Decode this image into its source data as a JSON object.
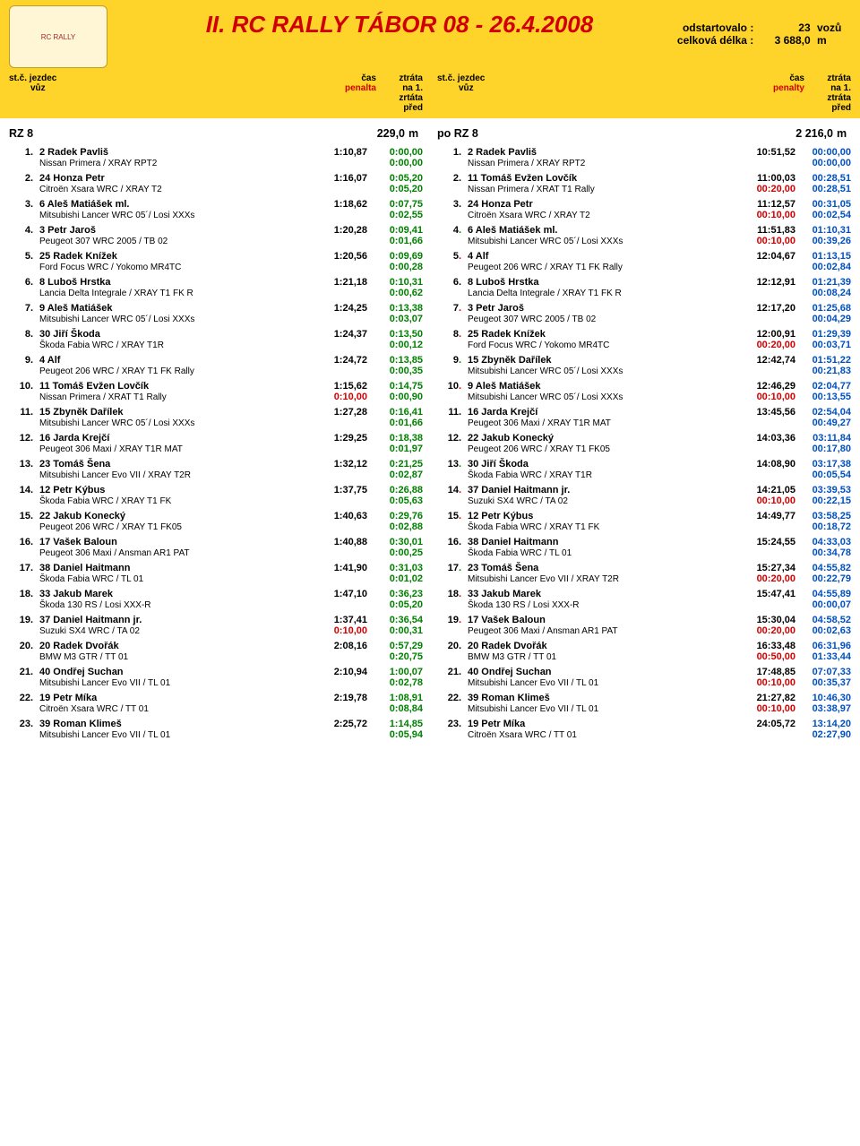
{
  "title": "II. RC RALLY TÁBOR 08 - 26.4.2008",
  "meta": {
    "started_label": "odstartovalo  :",
    "started_val": "23",
    "started_unit": "vozů",
    "length_label": "celková délka :",
    "length_val": "3 688,0",
    "length_unit": "m"
  },
  "head": {
    "stc": "st.č.",
    "jezdec": "jezdec",
    "cas": "čas",
    "ztrata": "ztráta",
    "na1": "na 1.",
    "vuz": "vůz",
    "penalta": "penalta",
    "penalty": "penalty",
    "zrtata": "zrtáta",
    "ztrata2": "ztráta",
    "pred": "před"
  },
  "left": {
    "heading": "RZ 8",
    "dist": "229,0",
    "unit": "m",
    "rows": [
      {
        "pos": "1",
        "dotc": "black",
        "drv": "2 Radek Pavliš",
        "car": "Nissan Primera / XRAY RPT2",
        "t1": "1:10,87",
        "t2": "0:00,00",
        "pen": "",
        "sub": "0:00,00",
        "t1c": "black",
        "t2c": "green",
        "subc": "green"
      },
      {
        "pos": "2",
        "dotc": "black",
        "drv": "24 Honza Petr",
        "car": "Citroën Xsara WRC / XRAY T2",
        "t1": "1:16,07",
        "t2": "0:05,20",
        "pen": "",
        "sub": "0:05,20",
        "t1c": "black",
        "t2c": "green",
        "subc": "green"
      },
      {
        "pos": "3",
        "dotc": "black",
        "drv": "6 Aleš Matiášek ml.",
        "car": "Mitsubishi Lancer WRC 05´/ Losi XXXs",
        "t1": "1:18,62",
        "t2": "0:07,75",
        "pen": "",
        "sub": "0:02,55",
        "t1c": "black",
        "t2c": "green",
        "subc": "green"
      },
      {
        "pos": "4",
        "dotc": "black",
        "drv": "3 Petr Jaroš",
        "car": "Peugeot 307 WRC 2005 / TB 02",
        "t1": "1:20,28",
        "t2": "0:09,41",
        "pen": "",
        "sub": "0:01,66",
        "t1c": "black",
        "t2c": "green",
        "subc": "green"
      },
      {
        "pos": "5",
        "dotc": "black",
        "drv": "25 Radek Knížek",
        "car": "Ford Focus WRC / Yokomo MR4TC",
        "t1": "1:20,56",
        "t2": "0:09,69",
        "pen": "",
        "sub": "0:00,28",
        "t1c": "black",
        "t2c": "green",
        "subc": "green"
      },
      {
        "pos": "6",
        "dotc": "black",
        "drv": "8 Luboš Hrstka",
        "car": "Lancia Delta Integrale / XRAY T1 FK R",
        "t1": "1:21,18",
        "t2": "0:10,31",
        "pen": "",
        "sub": "0:00,62",
        "t1c": "black",
        "t2c": "green",
        "subc": "green"
      },
      {
        "pos": "7",
        "dotc": "black",
        "drv": "9 Aleš Matiášek",
        "car": "Mitsubishi Lancer WRC 05´/ Losi XXXs",
        "t1": "1:24,25",
        "t2": "0:13,38",
        "pen": "",
        "sub": "0:03,07",
        "t1c": "black",
        "t2c": "green",
        "subc": "green"
      },
      {
        "pos": "8",
        "dotc": "black",
        "drv": "30 Jiří Škoda",
        "car": "Škoda Fabia WRC / XRAY T1R",
        "t1": "1:24,37",
        "t2": "0:13,50",
        "pen": "",
        "sub": "0:00,12",
        "t1c": "black",
        "t2c": "green",
        "subc": "green"
      },
      {
        "pos": "9",
        "dotc": "black",
        "drv": "4 Alf",
        "car": "Peugeot 206 WRC / XRAY T1 FK Rally",
        "t1": "1:24,72",
        "t2": "0:13,85",
        "pen": "",
        "sub": "0:00,35",
        "t1c": "black",
        "t2c": "green",
        "subc": "green"
      },
      {
        "pos": "10",
        "dotc": "black",
        "drv": "11 Tomáš Evžen Lovčík",
        "car": "Nissan Primera / XRAT T1 Rally",
        "t1": "1:15,62",
        "t2": "0:14,75",
        "pen": "0:10,00",
        "sub": "0:00,90",
        "t1c": "black",
        "t2c": "green",
        "subc": "green"
      },
      {
        "pos": "11",
        "dotc": "black",
        "drv": "15 Zbyněk Dařílek",
        "car": "Mitsubishi Lancer WRC 05´/ Losi XXXs",
        "t1": "1:27,28",
        "t2": "0:16,41",
        "pen": "",
        "sub": "0:01,66",
        "t1c": "black",
        "t2c": "green",
        "subc": "green"
      },
      {
        "pos": "12",
        "dotc": "black",
        "drv": "16 Jarda Krejčí",
        "car": "Peugeot 306 Maxi / XRAY T1R MAT",
        "t1": "1:29,25",
        "t2": "0:18,38",
        "pen": "",
        "sub": "0:01,97",
        "t1c": "black",
        "t2c": "green",
        "subc": "green"
      },
      {
        "pos": "13",
        "dotc": "black",
        "drv": "23 Tomáš Šena",
        "car": "Mitsubishi Lancer Evo VII / XRAY T2R",
        "t1": "1:32,12",
        "t2": "0:21,25",
        "pen": "",
        "sub": "0:02,87",
        "t1c": "black",
        "t2c": "green",
        "subc": "green"
      },
      {
        "pos": "14",
        "dotc": "black",
        "drv": "12 Petr Kýbus",
        "car": "Škoda Fabia WRC / XRAY T1 FK",
        "t1": "1:37,75",
        "t2": "0:26,88",
        "pen": "",
        "sub": "0:05,63",
        "t1c": "black",
        "t2c": "green",
        "subc": "green"
      },
      {
        "pos": "15",
        "dotc": "black",
        "drv": "22 Jakub Konecký",
        "car": "Peugeot 206 WRC / XRAY T1 FK05",
        "t1": "1:40,63",
        "t2": "0:29,76",
        "pen": "",
        "sub": "0:02,88",
        "t1c": "black",
        "t2c": "green",
        "subc": "green"
      },
      {
        "pos": "16",
        "dotc": "black",
        "drv": "17 Vašek Baloun",
        "car": "Peugeot 306 Maxi / Ansman AR1 PAT",
        "t1": "1:40,88",
        "t2": "0:30,01",
        "pen": "",
        "sub": "0:00,25",
        "t1c": "black",
        "t2c": "green",
        "subc": "green"
      },
      {
        "pos": "17",
        "dotc": "black",
        "drv": "38 Daniel Haitmann",
        "car": "Škoda Fabia WRC / TL 01",
        "t1": "1:41,90",
        "t2": "0:31,03",
        "pen": "",
        "sub": "0:01,02",
        "t1c": "black",
        "t2c": "green",
        "subc": "green"
      },
      {
        "pos": "18",
        "dotc": "black",
        "drv": "33 Jakub Marek",
        "car": "Škoda 130 RS / Losi XXX-R",
        "t1": "1:47,10",
        "t2": "0:36,23",
        "pen": "",
        "sub": "0:05,20",
        "t1c": "black",
        "t2c": "green",
        "subc": "green"
      },
      {
        "pos": "19",
        "dotc": "black",
        "drv": "37 Daniel Haitmann jr.",
        "car": "Suzuki SX4 WRC / TA 02",
        "t1": "1:37,41",
        "t2": "0:36,54",
        "pen": "0:10,00",
        "sub": "0:00,31",
        "t1c": "black",
        "t2c": "green",
        "subc": "green"
      },
      {
        "pos": "20",
        "dotc": "black",
        "drv": "20 Radek Dvořák",
        "car": "BMW M3 GTR / TT 01",
        "t1": "2:08,16",
        "t2": "0:57,29",
        "pen": "",
        "sub": "0:20,75",
        "t1c": "black",
        "t2c": "green",
        "subc": "green"
      },
      {
        "pos": "21",
        "dotc": "black",
        "drv": "40 Ondřej Suchan",
        "car": "Mitsubishi Lancer Evo VII / TL 01",
        "t1": "2:10,94",
        "t2": "1:00,07",
        "pen": "",
        "sub": "0:02,78",
        "t1c": "black",
        "t2c": "green",
        "subc": "green"
      },
      {
        "pos": "22",
        "dotc": "black",
        "drv": "19 Petr Míka",
        "car": "Citroën Xsara WRC / TT 01",
        "t1": "2:19,78",
        "t2": "1:08,91",
        "pen": "",
        "sub": "0:08,84",
        "t1c": "black",
        "t2c": "green",
        "subc": "green"
      },
      {
        "pos": "23",
        "dotc": "black",
        "drv": "39 Roman Klimeš",
        "car": "Mitsubishi Lancer Evo VII / TL 01",
        "t1": "2:25,72",
        "t2": "1:14,85",
        "pen": "",
        "sub": "0:05,94",
        "t1c": "black",
        "t2c": "green",
        "subc": "green"
      }
    ]
  },
  "right": {
    "heading": "po RZ 8",
    "dist": "2 216,0",
    "unit": "m",
    "rows": [
      {
        "pos": "1",
        "dotc": "black",
        "drv": "2 Radek Pavliš",
        "car": "Nissan Primera / XRAY RPT2",
        "t1": "10:51,52",
        "t2": "00:00,00",
        "pen": "",
        "sub": "00:00,00",
        "t1c": "black",
        "t2c": "blue",
        "subc": "blue"
      },
      {
        "pos": "2",
        "dotc": "black",
        "drv": "11 Tomáš Evžen Lovčík",
        "car": "Nissan Primera / XRAT T1 Rally",
        "t1": "11:00,03",
        "t2": "00:28,51",
        "pen": "00:20,00",
        "sub": "00:28,51",
        "t1c": "black",
        "t2c": "blue",
        "subc": "blue"
      },
      {
        "pos": "3",
        "dotc": "black",
        "drv": "24 Honza Petr",
        "car": "Citroën Xsara WRC / XRAY T2",
        "t1": "11:12,57",
        "t2": "00:31,05",
        "pen": "00:10,00",
        "sub": "00:02,54",
        "t1c": "black",
        "t2c": "blue",
        "subc": "blue"
      },
      {
        "pos": "4",
        "dotc": "green",
        "drv": "6 Aleš Matiášek ml.",
        "car": "Mitsubishi Lancer WRC 05´/ Losi XXXs",
        "t1": "11:51,83",
        "t2": "01:10,31",
        "pen": "00:10,00",
        "sub": "00:39,26",
        "t1c": "black",
        "t2c": "blue",
        "subc": "blue"
      },
      {
        "pos": "5",
        "dotc": "red",
        "drv": "4 Alf",
        "car": "Peugeot 206 WRC / XRAY T1 FK Rally",
        "t1": "12:04,67",
        "t2": "01:13,15",
        "pen": "",
        "sub": "00:02,84",
        "t1c": "black",
        "t2c": "blue",
        "subc": "blue"
      },
      {
        "pos": "6",
        "dotc": "black",
        "drv": "8 Luboš Hrstka",
        "car": "Lancia Delta Integrale / XRAY T1 FK R",
        "t1": "12:12,91",
        "t2": "01:21,39",
        "pen": "",
        "sub": "00:08,24",
        "t1c": "black",
        "t2c": "blue",
        "subc": "blue"
      },
      {
        "pos": "7",
        "dotc": "red",
        "drv": "3 Petr Jaroš",
        "car": "Peugeot 307 WRC 2005 / TB 02",
        "t1": "12:17,20",
        "t2": "01:25,68",
        "pen": "",
        "sub": "00:04,29",
        "t1c": "black",
        "t2c": "blue",
        "subc": "blue"
      },
      {
        "pos": "8",
        "dotc": "red",
        "drv": "25 Radek Knížek",
        "car": "Ford Focus WRC / Yokomo MR4TC",
        "t1": "12:00,91",
        "t2": "01:29,39",
        "pen": "00:20,00",
        "sub": "00:03,71",
        "t1c": "black",
        "t2c": "blue",
        "subc": "blue"
      },
      {
        "pos": "9",
        "dotc": "green",
        "drv": "15 Zbyněk Dařílek",
        "car": "Mitsubishi Lancer WRC 05´/ Losi XXXs",
        "t1": "12:42,74",
        "t2": "01:51,22",
        "pen": "",
        "sub": "00:21,83",
        "t1c": "black",
        "t2c": "blue",
        "subc": "blue"
      },
      {
        "pos": "10",
        "dotc": "red",
        "drv": "9 Aleš Matiášek",
        "car": "Mitsubishi Lancer WRC 05´/ Losi XXXs",
        "t1": "12:46,29",
        "t2": "02:04,77",
        "pen": "00:10,00",
        "sub": "00:13,55",
        "t1c": "black",
        "t2c": "blue",
        "subc": "blue"
      },
      {
        "pos": "11",
        "dotc": "black",
        "drv": "16 Jarda Krejčí",
        "car": "Peugeot 306 Maxi / XRAY T1R MAT",
        "t1": "13:45,56",
        "t2": "02:54,04",
        "pen": "",
        "sub": "00:49,27",
        "t1c": "black",
        "t2c": "blue",
        "subc": "blue"
      },
      {
        "pos": "12",
        "dotc": "black",
        "drv": "22 Jakub Konecký",
        "car": "Peugeot 206 WRC / XRAY T1 FK05",
        "t1": "14:03,36",
        "t2": "03:11,84",
        "pen": "",
        "sub": "00:17,80",
        "t1c": "black",
        "t2c": "blue",
        "subc": "blue"
      },
      {
        "pos": "13",
        "dotc": "green",
        "drv": "30 Jiří Škoda",
        "car": "Škoda Fabia WRC / XRAY T1R",
        "t1": "14:08,90",
        "t2": "03:17,38",
        "pen": "",
        "sub": "00:05,54",
        "t1c": "black",
        "t2c": "blue",
        "subc": "blue"
      },
      {
        "pos": "14",
        "dotc": "red",
        "drv": "37 Daniel Haitmann jr.",
        "car": "Suzuki SX4 WRC / TA 02",
        "t1": "14:21,05",
        "t2": "03:39,53",
        "pen": "00:10,00",
        "sub": "00:22,15",
        "t1c": "black",
        "t2c": "blue",
        "subc": "blue"
      },
      {
        "pos": "15",
        "dotc": "red",
        "drv": "12 Petr Kýbus",
        "car": "Škoda Fabia WRC / XRAY T1 FK",
        "t1": "14:49,77",
        "t2": "03:58,25",
        "pen": "",
        "sub": "00:18,72",
        "t1c": "black",
        "t2c": "blue",
        "subc": "blue"
      },
      {
        "pos": "16",
        "dotc": "black",
        "drv": "38 Daniel Haitmann",
        "car": "Škoda Fabia WRC / TL 01",
        "t1": "15:24,55",
        "t2": "04:33,03",
        "pen": "",
        "sub": "00:34,78",
        "t1c": "black",
        "t2c": "blue",
        "subc": "blue"
      },
      {
        "pos": "17",
        "dotc": "green",
        "drv": "23 Tomáš Šena",
        "car": "Mitsubishi Lancer Evo VII / XRAY T2R",
        "t1": "15:27,34",
        "t2": "04:55,82",
        "pen": "00:20,00",
        "sub": "00:22,79",
        "t1c": "black",
        "t2c": "blue",
        "subc": "blue"
      },
      {
        "pos": "18",
        "dotc": "red",
        "drv": "33 Jakub Marek",
        "car": "Škoda 130 RS / Losi XXX-R",
        "t1": "15:47,41",
        "t2": "04:55,89",
        "pen": "",
        "sub": "00:00,07",
        "t1c": "black",
        "t2c": "blue",
        "subc": "blue"
      },
      {
        "pos": "19",
        "dotc": "red",
        "drv": "17 Vašek Baloun",
        "car": "Peugeot 306 Maxi / Ansman AR1 PAT",
        "t1": "15:30,04",
        "t2": "04:58,52",
        "pen": "00:20,00",
        "sub": "00:02,63",
        "t1c": "black",
        "t2c": "blue",
        "subc": "blue"
      },
      {
        "pos": "20",
        "dotc": "black",
        "drv": "20 Radek Dvořák",
        "car": "BMW M3 GTR / TT 01",
        "t1": "16:33,48",
        "t2": "06:31,96",
        "pen": "00:50,00",
        "sub": "01:33,44",
        "t1c": "black",
        "t2c": "blue",
        "subc": "blue"
      },
      {
        "pos": "21",
        "dotc": "black",
        "drv": "40 Ondřej Suchan",
        "car": "Mitsubishi Lancer Evo VII / TL 01",
        "t1": "17:48,85",
        "t2": "07:07,33",
        "pen": "00:10,00",
        "sub": "00:35,37",
        "t1c": "black",
        "t2c": "blue",
        "subc": "blue"
      },
      {
        "pos": "22",
        "dotc": "black",
        "drv": "39 Roman Klimeš",
        "car": "Mitsubishi Lancer Evo VII / TL 01",
        "t1": "21:27,82",
        "t2": "10:46,30",
        "pen": "00:10,00",
        "sub": "03:38,97",
        "t1c": "black",
        "t2c": "blue",
        "subc": "blue"
      },
      {
        "pos": "23",
        "dotc": "black",
        "drv": "19 Petr Míka",
        "car": "Citroën Xsara WRC / TT 01",
        "t1": "24:05,72",
        "t2": "13:14,20",
        "pen": "",
        "sub": "02:27,90",
        "t1c": "black",
        "t2c": "blue",
        "subc": "blue"
      }
    ]
  }
}
